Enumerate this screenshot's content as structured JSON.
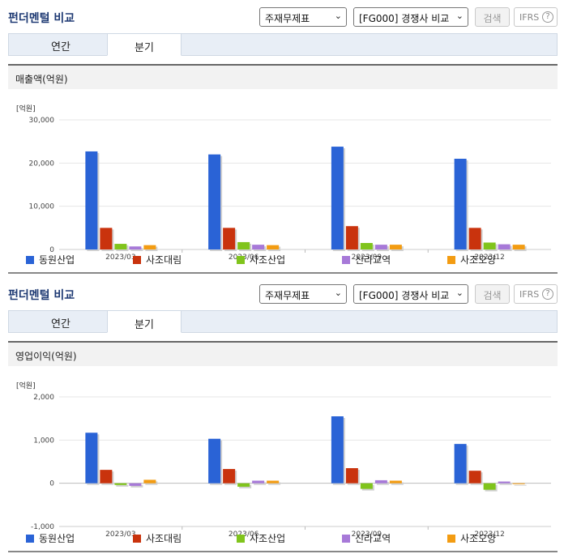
{
  "sections": [
    {
      "title": "펀더멘털 비교",
      "select1": "주재무제표",
      "select2": "[FG000] 경쟁사 비교",
      "search_btn": "검색",
      "ifrs": "IFRS",
      "ifrs_help": "?",
      "tabs": [
        "연간",
        "분기"
      ],
      "active_tab": 1,
      "metric": "매출액(억원)"
    },
    {
      "title": "펀더멘털 비교",
      "select1": "주재무제표",
      "select2": "[FG000] 경쟁사 비교",
      "search_btn": "검색",
      "ifrs": "IFRS",
      "ifrs_help": "?",
      "tabs": [
        "연간",
        "분기"
      ],
      "active_tab": 1,
      "metric": "영업이익(억원)"
    }
  ],
  "chart_data": [
    {
      "type": "bar",
      "ylabel": "[억원]",
      "categories": [
        "2023/03",
        "2023/06",
        "2023/09",
        "2023/12"
      ],
      "ylim": [
        0,
        30000
      ],
      "yticks": [
        0,
        10000,
        20000,
        30000
      ],
      "ytick_labels": [
        "0",
        "10,000",
        "20,000",
        "30,000"
      ],
      "series": [
        {
          "name": "동원산업",
          "color": "#2a63d6",
          "values": [
            22700,
            22000,
            23800,
            21000
          ]
        },
        {
          "name": "사조대림",
          "color": "#c9330d",
          "values": [
            5000,
            5000,
            5400,
            5000
          ]
        },
        {
          "name": "사조산업",
          "color": "#80c41c",
          "values": [
            1300,
            1700,
            1500,
            1600
          ]
        },
        {
          "name": "신라교역",
          "color": "#a779d8",
          "values": [
            700,
            1100,
            1100,
            1200
          ]
        },
        {
          "name": "사조오양",
          "color": "#f39c12",
          "values": [
            1000,
            1000,
            1100,
            1100
          ]
        }
      ]
    },
    {
      "type": "bar",
      "ylabel": "[억원]",
      "categories": [
        "2023/03",
        "2023/06",
        "2023/09",
        "2023/12"
      ],
      "ylim": [
        -1000,
        2000
      ],
      "yticks": [
        -1000,
        0,
        1000,
        2000
      ],
      "ytick_labels": [
        "-1,000",
        "0",
        "1,000",
        "2,000"
      ],
      "series": [
        {
          "name": "동원산업",
          "color": "#2a63d6",
          "values": [
            1170,
            1030,
            1550,
            910
          ]
        },
        {
          "name": "사조대림",
          "color": "#c9330d",
          "values": [
            310,
            330,
            350,
            290
          ]
        },
        {
          "name": "사조산업",
          "color": "#80c41c",
          "values": [
            -40,
            -80,
            -130,
            -150
          ]
        },
        {
          "name": "신라교역",
          "color": "#a779d8",
          "values": [
            -60,
            60,
            70,
            40
          ]
        },
        {
          "name": "사조오양",
          "color": "#f39c12",
          "values": [
            80,
            60,
            60,
            0
          ]
        }
      ]
    }
  ]
}
